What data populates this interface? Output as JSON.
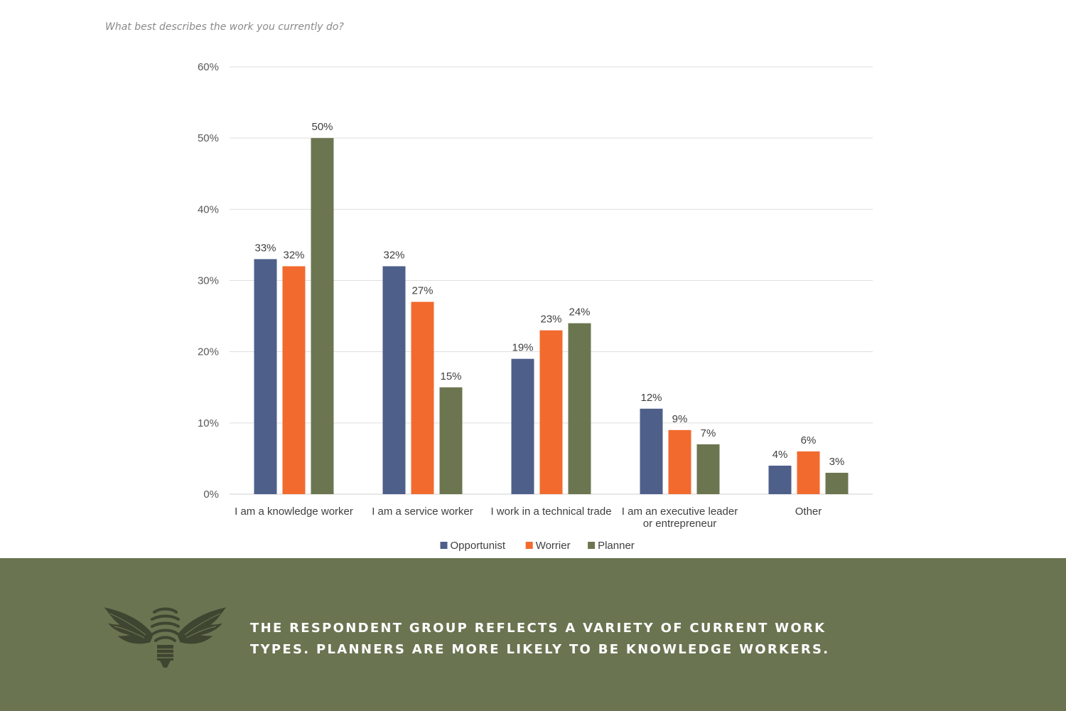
{
  "question": "What best describes the work you currently do?",
  "chart_data": {
    "type": "bar",
    "categories": [
      [
        "I am a knowledge worker"
      ],
      [
        "I am a service worker"
      ],
      [
        "I work in a technical trade"
      ],
      [
        "I am an executive leader",
        "or entrepreneur"
      ],
      [
        "Other"
      ]
    ],
    "series": [
      {
        "name": "Opportunist",
        "color": "#4e5f8a",
        "values": [
          33,
          32,
          19,
          12,
          4
        ]
      },
      {
        "name": "Worrier",
        "color": "#f26a2e",
        "values": [
          32,
          27,
          23,
          9,
          6
        ]
      },
      {
        "name": "Planner",
        "color": "#6b7650",
        "values": [
          50,
          15,
          24,
          7,
          3
        ]
      }
    ],
    "ylim": [
      0,
      60
    ],
    "yticks": [
      0,
      10,
      20,
      30,
      40,
      50,
      60
    ],
    "value_suffix": "%",
    "grid": true,
    "legend_position": "bottom"
  },
  "footer": {
    "text": "THE RESPONDENT GROUP REFLECTS A VARIETY OF CURRENT WORK TYPES. PLANNERS ARE MORE LIKELY TO BE KNOWLEDGE WORKERS.",
    "logo_icon": "winged-lightbulb-icon",
    "background_color": "#6b7451"
  }
}
